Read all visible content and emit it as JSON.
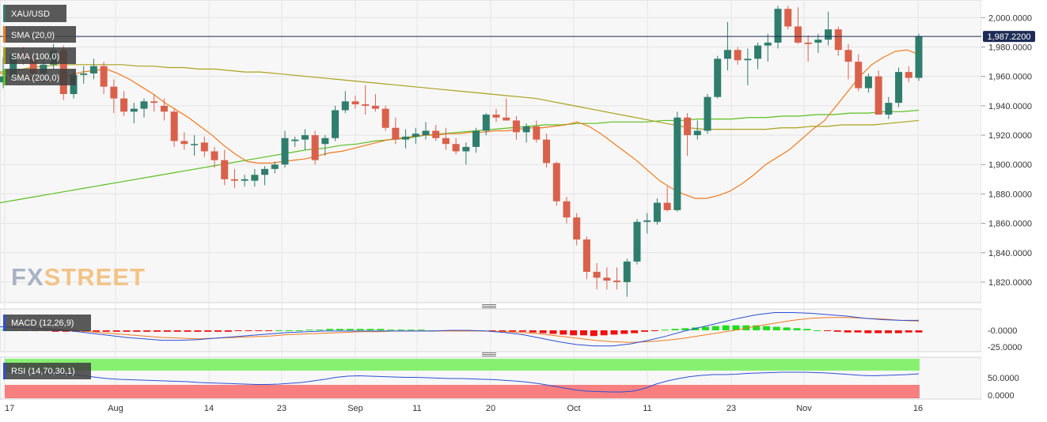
{
  "symbol": "XAU/USD",
  "watermark": {
    "fx": "FX",
    "street": "STREET"
  },
  "colors": {
    "bull": "#2f7d6d",
    "bear": "#d9614c",
    "sma20": "#f07a1e",
    "sma100": "#a9a21c",
    "sma200": "#5bbf1f",
    "macd_line": "#2d4fd6",
    "macd_signal": "#f07a1e",
    "macd_hist_pos": "#22dd22",
    "macd_hist_neg": "#ee1111",
    "rsi_line": "#2d4fd6",
    "rsi_upper": "#88f070",
    "rsi_lower": "#f87f7f",
    "price_line": "#1d2b55"
  },
  "price_tag": "1,987.2200",
  "legend": [
    {
      "label": "SMA (20,0)",
      "color": "#f07a1e"
    },
    {
      "label": "SMA (100,0)",
      "color": "#a9a21c"
    },
    {
      "label": "SMA (200,0)",
      "color": "#5bbf1f"
    }
  ],
  "x_labels": [
    "17",
    "Aug",
    "14",
    "23",
    "Sep",
    "11",
    "20",
    "Oct",
    "11",
    "23",
    "Nov",
    "16"
  ],
  "macd": {
    "label": "MACD (12,26,9)",
    "ticks": [
      "-0.0000",
      "-25.0000"
    ]
  },
  "rsi": {
    "label": "RSI (14,70,30,1)",
    "ticks": [
      "50.0000",
      "0.0000"
    ]
  },
  "chart_data": {
    "type": "candlestick",
    "ylim": [
      1806,
      2012
    ],
    "y_ticks": [
      2000,
      1980,
      1960,
      1940,
      1920,
      1900,
      1880,
      1860,
      1840,
      1820
    ],
    "y_tick_labels": [
      "2,000.0000",
      "1,980.0000",
      "1,960.0000",
      "1,940.0000",
      "1,920.0000",
      "1,900.0000",
      "1,880.0000",
      "1,860.0000",
      "1,840.0000",
      "1,820.0000"
    ],
    "last_price": 1987.22,
    "candles": [
      [
        1956,
        1973,
        1952,
        1960
      ],
      [
        1960,
        1978,
        1956,
        1975
      ],
      [
        1975,
        1980,
        1968,
        1972
      ],
      [
        1972,
        1975,
        1958,
        1962
      ],
      [
        1962,
        1974,
        1955,
        1968
      ],
      [
        1968,
        1982,
        1965,
        1978
      ],
      [
        1978,
        1981,
        1944,
        1948
      ],
      [
        1948,
        1964,
        1945,
        1961
      ],
      [
        1961,
        1967,
        1955,
        1962
      ],
      [
        1962,
        1972,
        1958,
        1967
      ],
      [
        1967,
        1970,
        1948,
        1953
      ],
      [
        1953,
        1958,
        1935,
        1945
      ],
      [
        1945,
        1950,
        1933,
        1936
      ],
      [
        1936,
        1942,
        1928,
        1938
      ],
      [
        1938,
        1945,
        1932,
        1943
      ],
      [
        1943,
        1948,
        1936,
        1942
      ],
      [
        1940,
        1945,
        1930,
        1936
      ],
      [
        1936,
        1938,
        1912,
        1916
      ],
      [
        1916,
        1922,
        1910,
        1914
      ],
      [
        1914,
        1920,
        1906,
        1914
      ],
      [
        1915,
        1919,
        1905,
        1909
      ],
      [
        1909,
        1912,
        1898,
        1903
      ],
      [
        1903,
        1910,
        1886,
        1890
      ],
      [
        1890,
        1897,
        1884,
        1889
      ],
      [
        1889,
        1893,
        1885,
        1890
      ],
      [
        1889,
        1897,
        1885,
        1893
      ],
      [
        1893,
        1899,
        1886,
        1897
      ],
      [
        1897,
        1902,
        1894,
        1900
      ],
      [
        1900,
        1923,
        1898,
        1918
      ],
      [
        1916,
        1919,
        1912,
        1917
      ],
      [
        1917,
        1924,
        1910,
        1920
      ],
      [
        1920,
        1923,
        1900,
        1903
      ],
      [
        1914,
        1920,
        1906,
        1918
      ],
      [
        1918,
        1940,
        1916,
        1937
      ],
      [
        1937,
        1950,
        1935,
        1943
      ],
      [
        1943,
        1947,
        1938,
        1941
      ],
      [
        1941,
        1954,
        1934,
        1940
      ],
      [
        1940,
        1948,
        1936,
        1938
      ],
      [
        1938,
        1940,
        1923,
        1925
      ],
      [
        1925,
        1932,
        1914,
        1917
      ],
      [
        1917,
        1924,
        1911,
        1919
      ],
      [
        1919,
        1925,
        1914,
        1921
      ],
      [
        1920,
        1929,
        1917,
        1923
      ],
      [
        1923,
        1927,
        1916,
        1918
      ],
      [
        1918,
        1925,
        1910,
        1914
      ],
      [
        1914,
        1918,
        1907,
        1909
      ],
      [
        1909,
        1915,
        1900,
        1912
      ],
      [
        1912,
        1925,
        1908,
        1923
      ],
      [
        1923,
        1935,
        1920,
        1934
      ],
      [
        1934,
        1938,
        1929,
        1932
      ],
      [
        1932,
        1945,
        1930,
        1930
      ],
      [
        1930,
        1933,
        1917,
        1922
      ],
      [
        1922,
        1928,
        1915,
        1926
      ],
      [
        1926,
        1930,
        1915,
        1917
      ],
      [
        1917,
        1921,
        1898,
        1901
      ],
      [
        1901,
        1902,
        1872,
        1875
      ],
      [
        1875,
        1878,
        1860,
        1864
      ],
      [
        1864,
        1867,
        1845,
        1849
      ],
      [
        1849,
        1851,
        1822,
        1827
      ],
      [
        1827,
        1833,
        1815,
        1823
      ],
      [
        1823,
        1830,
        1815,
        1821
      ],
      [
        1821,
        1830,
        1815,
        1820
      ],
      [
        1820,
        1836,
        1810,
        1834
      ],
      [
        1834,
        1863,
        1832,
        1861
      ],
      [
        1861,
        1867,
        1853,
        1862
      ],
      [
        1861,
        1877,
        1859,
        1874
      ],
      [
        1874,
        1885,
        1868,
        1869
      ],
      [
        1869,
        1936,
        1868,
        1932
      ],
      [
        1932,
        1935,
        1906,
        1920
      ],
      [
        1920,
        1930,
        1917,
        1923
      ],
      [
        1923,
        1948,
        1921,
        1946
      ],
      [
        1946,
        1974,
        1945,
        1972
      ],
      [
        1972,
        1997,
        1964,
        1978
      ],
      [
        1978,
        1980,
        1968,
        1971
      ],
      [
        1971,
        1979,
        1954,
        1972
      ],
      [
        1972,
        1983,
        1965,
        1981
      ],
      [
        1981,
        1989,
        1970,
        1983
      ],
      [
        1983,
        2008,
        1979,
        2006
      ],
      [
        2006,
        2008,
        1992,
        1994
      ],
      [
        1994,
        2007,
        1982,
        1983
      ],
      [
        1983,
        1988,
        1970,
        1982
      ],
      [
        1983,
        1989,
        1976,
        1985
      ],
      [
        1985,
        2004,
        1981,
        1992
      ],
      [
        1992,
        1994,
        1974,
        1978
      ],
      [
        1978,
        1982,
        1958,
        1970
      ],
      [
        1970,
        1975,
        1950,
        1952
      ],
      [
        1952,
        1962,
        1949,
        1960
      ],
      [
        1960,
        1964,
        1934,
        1934
      ],
      [
        1934,
        1946,
        1931,
        1942
      ],
      [
        1942,
        1966,
        1939,
        1963
      ],
      [
        1963,
        1967,
        1956,
        1959
      ],
      [
        1959,
        1989,
        1957,
        1987
      ]
    ],
    "sma20": [
      1962,
      1962,
      1960,
      1958,
      1957,
      1958,
      1961,
      1963,
      1964,
      1965,
      1962,
      1958,
      1953,
      1948,
      1942,
      1937,
      1932,
      1926,
      1920,
      1913,
      1907,
      1902,
      1901,
      1901,
      1902,
      1903,
      1904,
      1906,
      1908,
      1909,
      1911,
      1913,
      1915,
      1917,
      1918,
      1919,
      1920,
      1920,
      1921,
      1921,
      1922,
      1922,
      1923,
      1923,
      1924,
      1925,
      1925,
      1926,
      1927,
      1929,
      1926,
      1921,
      1915,
      1909,
      1903,
      1896,
      1889,
      1884,
      1880,
      1877,
      1877,
      1879,
      1882,
      1887,
      1893,
      1900,
      1905,
      1910,
      1917,
      1924,
      1930,
      1940,
      1950,
      1960,
      1968,
      1973,
      1977,
      1978,
      1975
    ],
    "sma100": [
      1963,
      1964,
      1966,
      1967,
      1968,
      1968,
      1968,
      1968,
      1968,
      1967,
      1967,
      1966,
      1966,
      1965,
      1965,
      1964,
      1963,
      1963,
      1962,
      1961,
      1960,
      1959,
      1958,
      1957,
      1956,
      1955,
      1954,
      1953,
      1952,
      1951,
      1950,
      1949,
      1948,
      1947,
      1946,
      1945,
      1943,
      1941,
      1939,
      1937,
      1935,
      1933,
      1931,
      1929,
      1927,
      1925,
      1924,
      1924,
      1924,
      1924,
      1924,
      1925,
      1925,
      1926,
      1926,
      1927,
      1927,
      1927,
      1928,
      1929,
      1930
    ],
    "sma200": [
      1874,
      1876,
      1878,
      1880,
      1882,
      1884,
      1886,
      1888,
      1890,
      1892,
      1894,
      1896,
      1898,
      1900,
      1902,
      1904,
      1906,
      1908,
      1910,
      1911,
      1913,
      1914,
      1916,
      1917,
      1918,
      1920,
      1921,
      1922,
      1923,
      1924,
      1925,
      1926,
      1927,
      1927,
      1928,
      1928,
      1929,
      1929,
      1929,
      1930,
      1930,
      1931,
      1931,
      1931,
      1932,
      1932,
      1933,
      1933,
      1934,
      1934,
      1935,
      1935,
      1936,
      1936,
      1937
    ],
    "macd_line": [
      5,
      4,
      3,
      1,
      -1,
      -4,
      -7,
      -10,
      -12,
      -14,
      -14,
      -13,
      -11,
      -9,
      -7,
      -5,
      -3,
      -2,
      -1,
      -1,
      -1,
      -1,
      -1,
      -1,
      -1,
      0,
      0,
      -1,
      -3,
      -6,
      -11,
      -16,
      -20,
      -22,
      -22,
      -19,
      -14,
      -8,
      -1,
      5,
      11,
      17,
      22,
      25,
      25,
      24,
      22,
      20,
      17,
      15,
      14,
      14
    ],
    "macd_signal": [
      5,
      4,
      3,
      2,
      0,
      -2,
      -4,
      -6,
      -8,
      -10,
      -11,
      -12,
      -11,
      -10,
      -9,
      -8,
      -6,
      -5,
      -4,
      -3,
      -2,
      -2,
      -1,
      -1,
      -1,
      -1,
      -1,
      -1,
      -2,
      -3,
      -5,
      -8,
      -11,
      -14,
      -16,
      -17,
      -16,
      -14,
      -11,
      -7,
      -3,
      1,
      6,
      10,
      14,
      17,
      18,
      18,
      17,
      16,
      14,
      13
    ],
    "macd_hist": [
      1,
      0,
      0,
      -1,
      -1,
      -2,
      -2,
      -2,
      -2,
      -2,
      -2,
      -2,
      -2,
      -2,
      -2,
      -2,
      -2,
      -2,
      -2,
      -2,
      -2,
      -2,
      -2,
      -1,
      -1,
      -1,
      -1,
      0,
      0,
      0,
      1,
      1,
      2,
      2,
      2,
      2,
      2,
      2,
      1,
      1,
      1,
      1,
      0,
      0,
      0,
      0,
      0,
      0,
      -1,
      -2,
      -2,
      -2,
      -3,
      -4,
      -5,
      -6,
      -7,
      -7,
      -8,
      -7,
      -6,
      -5,
      -4,
      -2,
      -1,
      1,
      2,
      3,
      4,
      5,
      6,
      7,
      7,
      7,
      7,
      6,
      5,
      4,
      3,
      2,
      0,
      -1,
      -2,
      -3,
      -3,
      -4,
      -4,
      -4,
      -4,
      -3,
      -3
    ],
    "rsi": [
      68,
      66,
      64,
      63,
      62,
      61,
      60,
      57,
      53,
      50,
      48,
      47,
      46,
      45,
      44,
      43,
      42,
      40,
      39,
      38,
      37,
      36,
      35,
      35,
      36,
      38,
      40,
      44,
      48,
      53,
      56,
      57,
      56,
      55,
      54,
      53,
      53,
      52,
      51,
      50,
      50,
      49,
      48,
      47,
      45,
      43,
      40,
      36,
      31,
      26,
      21,
      18,
      17,
      16,
      16,
      18,
      25,
      36,
      44,
      50,
      55,
      58,
      60,
      60,
      61,
      63,
      64,
      65,
      66,
      66,
      66,
      65,
      64,
      62,
      60,
      58,
      57,
      58,
      59,
      60,
      62
    ]
  }
}
